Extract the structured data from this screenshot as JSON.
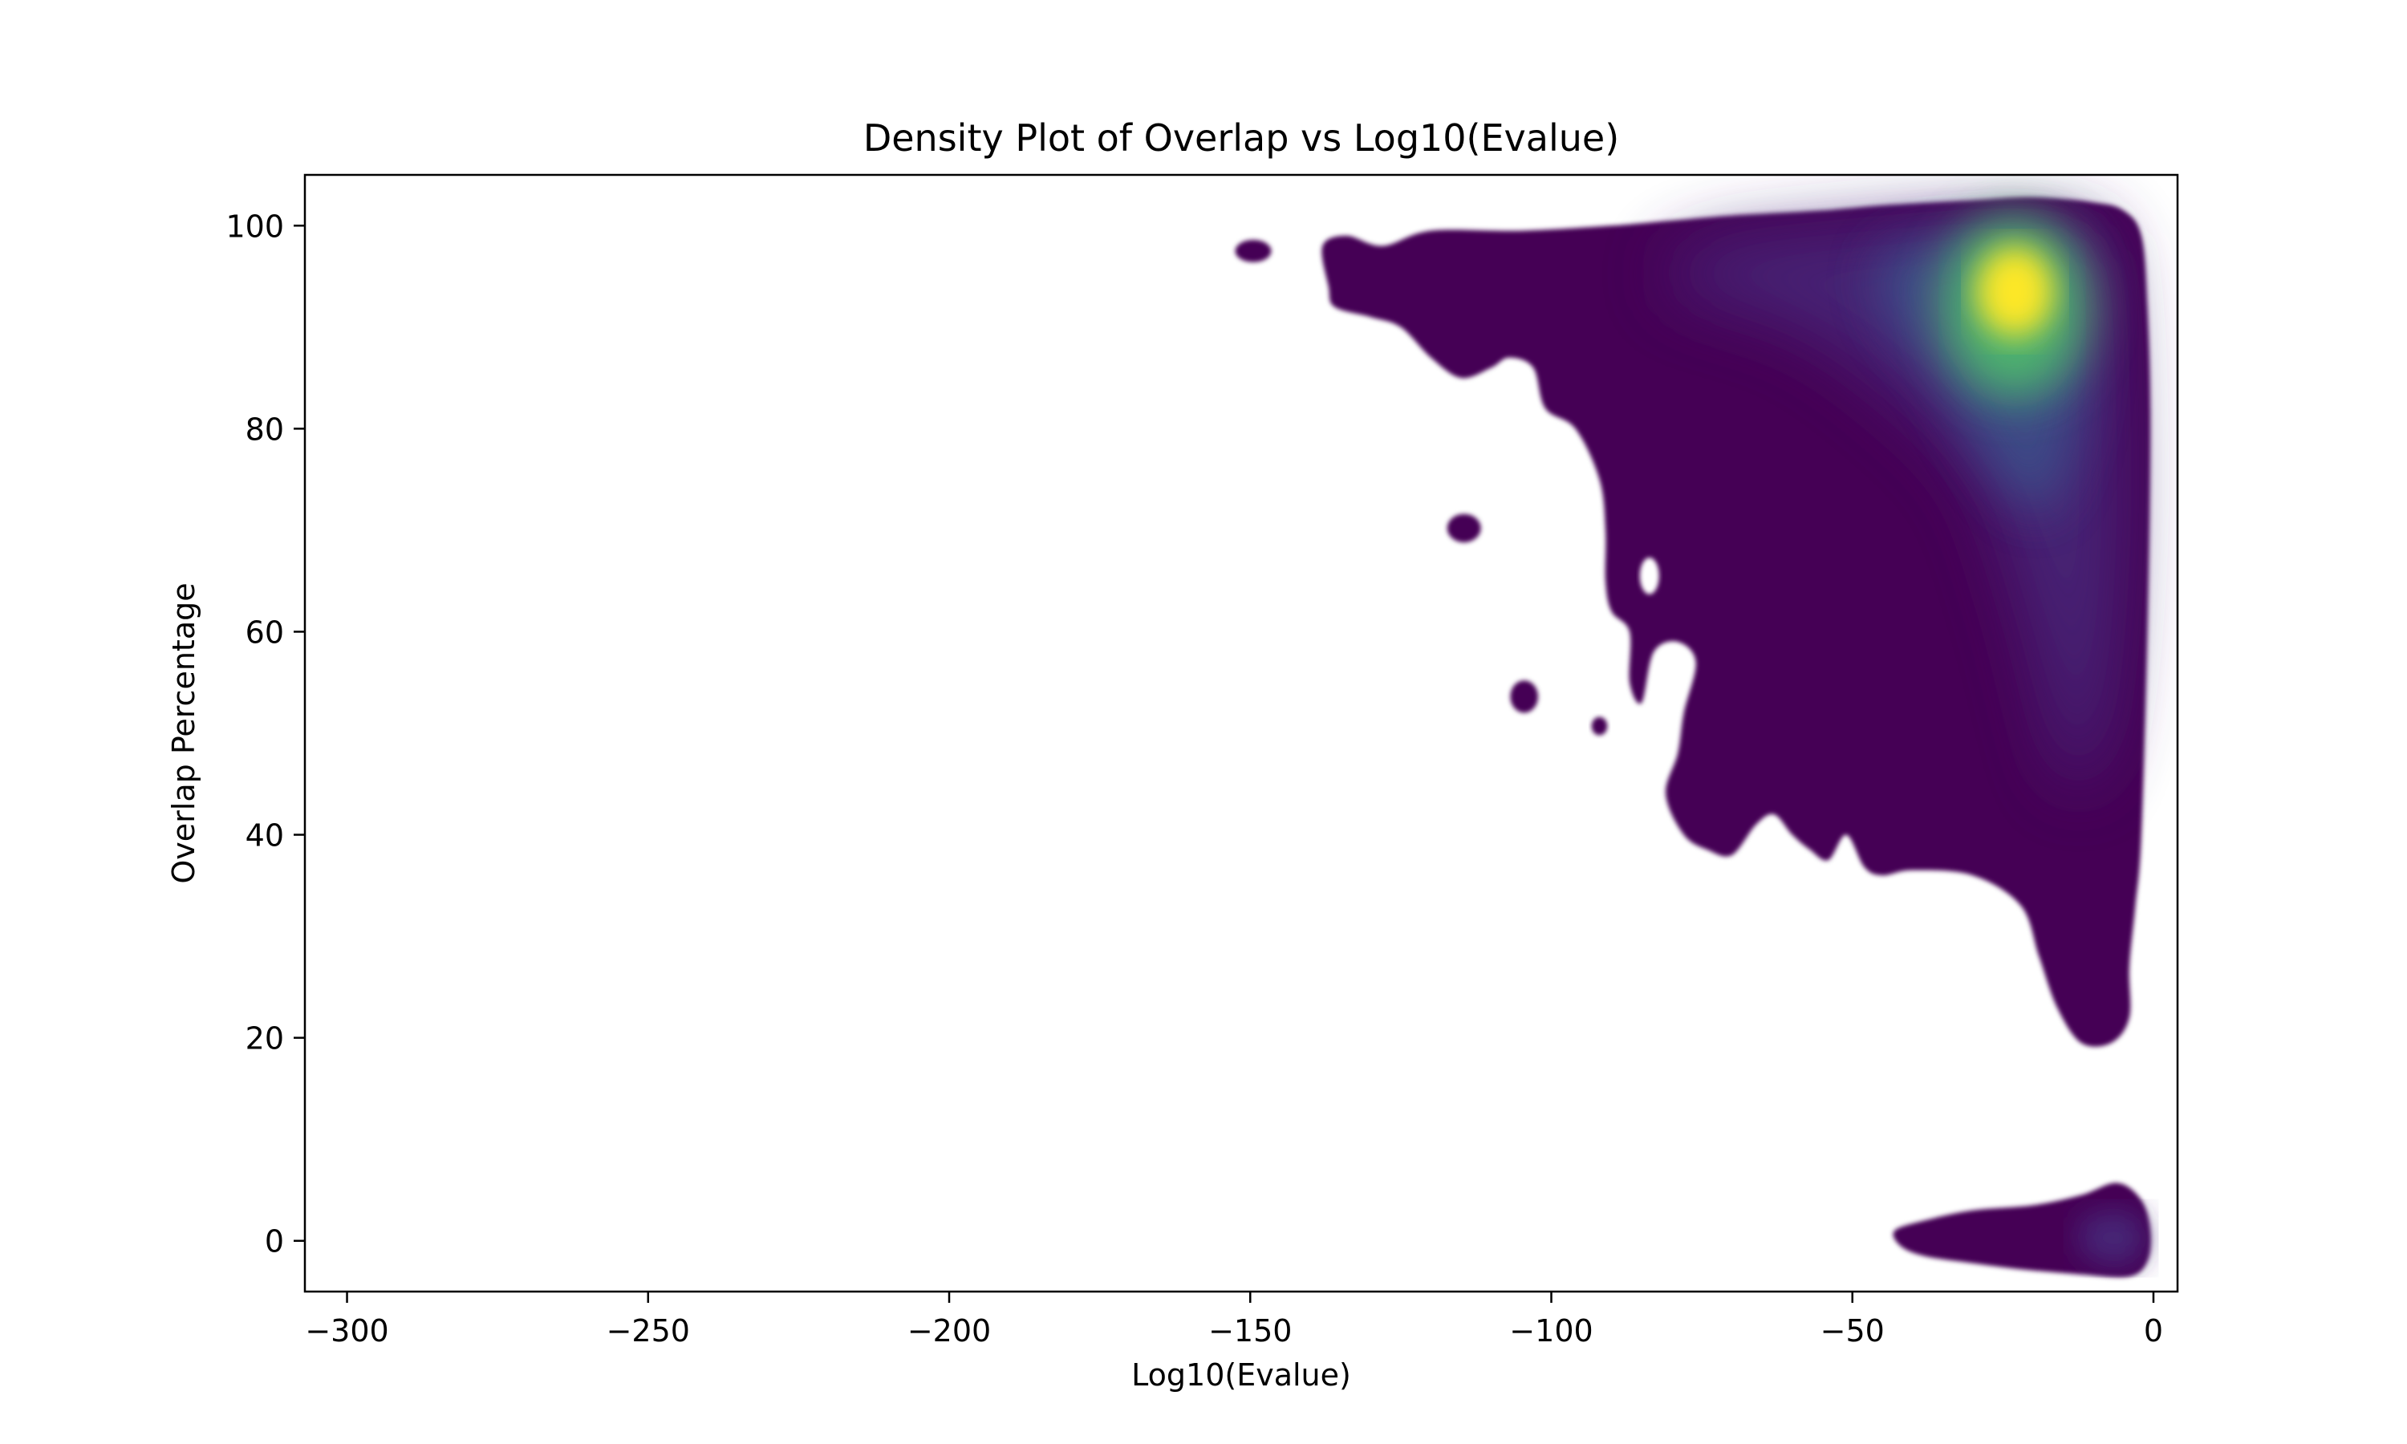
{
  "chart_data": {
    "type": "heatmap",
    "subtype": "kernel-density-estimate",
    "title": "Density Plot of Overlap vs Log10(Evalue)",
    "xlabel": "Log10(Evalue)",
    "ylabel": "Overlap Percentage",
    "xlim": [
      -307,
      4
    ],
    "ylim": [
      -5,
      105
    ],
    "xticks": [
      -300,
      -250,
      -200,
      -150,
      -100,
      -50,
      0
    ],
    "xtick_labels": [
      "−300",
      "−250",
      "−200",
      "−150",
      "−100",
      "−50",
      "0"
    ],
    "yticks": [
      0,
      20,
      40,
      60,
      80,
      100
    ],
    "ytick_labels": [
      "0",
      "20",
      "40",
      "60",
      "80",
      "100"
    ],
    "grid": false,
    "colormap": "viridis",
    "colors": {
      "low": "#440154",
      "mid_low": "#472c7a",
      "mid": "#3b528b",
      "mid_high": "#21918c",
      "high": "#5ec962",
      "peak": "#fde725"
    },
    "regions": [
      {
        "name": "main-mass",
        "level": 0.05,
        "outline": [
          [
            -138,
            98
          ],
          [
            -134,
            99
          ],
          [
            -128,
            98
          ],
          [
            -120,
            99.5
          ],
          [
            -105,
            99.5
          ],
          [
            -90,
            100
          ],
          [
            -80,
            100.5
          ],
          [
            -70,
            101
          ],
          [
            -55,
            101.5
          ],
          [
            -45,
            102
          ],
          [
            -30,
            102.5
          ],
          [
            -20,
            102.8
          ],
          [
            -10,
            102.3
          ],
          [
            -5,
            101.5
          ],
          [
            -2,
            99
          ],
          [
            -1,
            92
          ],
          [
            -0.5,
            80
          ],
          [
            -1,
            60
          ],
          [
            -2,
            40
          ],
          [
            -3,
            33
          ],
          [
            -4,
            27
          ],
          [
            -4,
            22
          ],
          [
            -7,
            19.5
          ],
          [
            -12,
            19.5
          ],
          [
            -16,
            23
          ],
          [
            -19,
            28
          ],
          [
            -22,
            33
          ],
          [
            -30,
            36
          ],
          [
            -40,
            36.5
          ],
          [
            -45,
            36
          ],
          [
            -48,
            36.8
          ],
          [
            -51,
            40
          ],
          [
            -54,
            37.5
          ],
          [
            -57,
            38.5
          ],
          [
            -60,
            40
          ],
          [
            -63,
            42
          ],
          [
            -66,
            41
          ],
          [
            -70,
            38
          ],
          [
            -74,
            38.5
          ],
          [
            -78,
            40
          ],
          [
            -81,
            44
          ],
          [
            -79,
            48
          ],
          [
            -78,
            52
          ],
          [
            -76,
            57
          ],
          [
            -79,
            59
          ],
          [
            -83,
            58
          ],
          [
            -85,
            53
          ],
          [
            -87,
            55
          ],
          [
            -87,
            60
          ],
          [
            -90,
            62
          ],
          [
            -91,
            65
          ],
          [
            -91,
            70
          ],
          [
            -92,
            75
          ],
          [
            -96,
            80
          ],
          [
            -101,
            82
          ],
          [
            -103,
            86
          ],
          [
            -107,
            87
          ],
          [
            -110,
            86
          ],
          [
            -115,
            85
          ],
          [
            -120,
            87
          ],
          [
            -125,
            90
          ],
          [
            -130,
            91
          ],
          [
            -136,
            92
          ],
          [
            -137,
            94
          ]
        ]
      },
      {
        "name": "moderate-band",
        "level": 0.25,
        "outline": [
          [
            -75,
            98
          ],
          [
            -50,
            100
          ],
          [
            -25,
            101
          ],
          [
            -10,
            100
          ],
          [
            -6,
            94
          ],
          [
            -5,
            70
          ],
          [
            -8,
            50
          ],
          [
            -14,
            45
          ],
          [
            -22,
            62
          ],
          [
            -30,
            75
          ],
          [
            -45,
            84
          ],
          [
            -60,
            90
          ],
          [
            -80,
            94
          ]
        ]
      },
      {
        "name": "upper-ridge",
        "level": 0.5,
        "outline": [
          [
            -45,
            97
          ],
          [
            -30,
            99
          ],
          [
            -18,
            99
          ],
          [
            -12,
            95
          ],
          [
            -12,
            82
          ],
          [
            -18,
            72
          ],
          [
            -27,
            76
          ],
          [
            -36,
            85
          ],
          [
            -44,
            91
          ]
        ]
      },
      {
        "name": "bright-core",
        "level": 0.75,
        "outline": [
          [
            -28,
            98
          ],
          [
            -22,
            98.5
          ],
          [
            -17,
            96
          ],
          [
            -16,
            90
          ],
          [
            -19,
            85
          ],
          [
            -25,
            84.5
          ],
          [
            -30,
            88
          ],
          [
            -31,
            94
          ]
        ]
      },
      {
        "name": "bottom-strip",
        "level": 0.05,
        "outline": [
          [
            -43,
            1
          ],
          [
            -38,
            2
          ],
          [
            -30,
            3
          ],
          [
            -20,
            3.5
          ],
          [
            -12,
            4.5
          ],
          [
            -6,
            5.7
          ],
          [
            -2,
            4
          ],
          [
            -0.5,
            1
          ],
          [
            -1,
            -2
          ],
          [
            -4,
            -3.5
          ],
          [
            -12,
            -3.3
          ],
          [
            -22,
            -2.8
          ],
          [
            -30,
            -2.2
          ],
          [
            -38,
            -1.5
          ],
          [
            -42,
            -0.5
          ]
        ]
      },
      {
        "name": "bottom-strip-core",
        "level": 0.2,
        "outline": [
          [
            -12,
            2
          ],
          [
            -6,
            3
          ],
          [
            -2,
            2
          ],
          [
            -2,
            -1.5
          ],
          [
            -7,
            -2.5
          ],
          [
            -12,
            -1
          ]
        ]
      },
      {
        "name": "island-150",
        "level": 0.05,
        "ellipse": {
          "cx": -149.5,
          "cy": 97.5,
          "rx": 3,
          "ry": 1.1
        }
      },
      {
        "name": "island-115",
        "level": 0.05,
        "ellipse": {
          "cx": -114.5,
          "cy": 70.2,
          "rx": 2.8,
          "ry": 1.4
        }
      },
      {
        "name": "island-105",
        "level": 0.05,
        "ellipse": {
          "cx": -104.5,
          "cy": 53.6,
          "rx": 2.3,
          "ry": 1.6
        }
      },
      {
        "name": "island-92",
        "level": 0.05,
        "ellipse": {
          "cx": -92,
          "cy": 50.7,
          "rx": 1.3,
          "ry": 0.9
        }
      }
    ],
    "holes": [
      {
        "name": "hole-84",
        "ellipse": {
          "cx": -83.7,
          "cy": 65.5,
          "rx": 1.6,
          "ry": 1.8
        }
      }
    ],
    "peak": {
      "x": -23,
      "y": 93.5
    }
  }
}
